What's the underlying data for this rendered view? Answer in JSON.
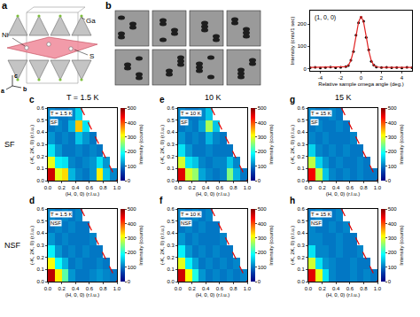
{
  "diagram_a": {
    "label": "a",
    "atoms": [
      "Ga",
      "Ni",
      "S"
    ],
    "axes": [
      "c",
      "a",
      "b"
    ]
  },
  "photos_b": {
    "label": "b",
    "count": 8
  },
  "row_labels": [
    "SF",
    "NSF"
  ],
  "column_labels": [
    "T = 1.5 K",
    "10 K",
    "15 K"
  ],
  "chart_data": [
    {
      "type": "scatter",
      "annotations": [
        "(1, 0, 0)"
      ],
      "x_label": "Relative sample omega angle (deg.)",
      "y_label": "Intensity (cnts/1 sec)",
      "xlim": [
        -5,
        5
      ],
      "ylim": [
        -10,
        260
      ],
      "xticks": [
        -4,
        -2,
        0,
        2,
        4
      ],
      "yticks": [
        0,
        100,
        200
      ],
      "series": [
        {
          "type": "scatter",
          "marker": "circle",
          "color": "#000000",
          "x": [
            -5,
            -4.5,
            -4,
            -3.5,
            -3,
            -2.5,
            -2,
            -1.5,
            -1.25,
            -1,
            -0.75,
            -0.5,
            -0.25,
            0,
            0.25,
            0.5,
            0.75,
            1,
            1.25,
            1.5,
            2,
            2.5,
            3,
            3.5,
            4,
            4.5,
            5
          ],
          "values": [
            4,
            6,
            3,
            5,
            7,
            4,
            6,
            9,
            14,
            38,
            76,
            150,
            205,
            230,
            212,
            140,
            84,
            33,
            16,
            7,
            5,
            6,
            4,
            5,
            3,
            6,
            4
          ]
        },
        {
          "type": "line",
          "line_style": "solid",
          "color": "#e02020",
          "x": [
            -5,
            -2,
            -1.5,
            -1.25,
            -1,
            -0.75,
            -0.5,
            -0.25,
            0,
            0.25,
            0.5,
            0.75,
            1,
            1.25,
            1.5,
            2,
            5
          ],
          "values": [
            5,
            5,
            8,
            15,
            36,
            80,
            145,
            208,
            235,
            208,
            145,
            80,
            36,
            15,
            8,
            5,
            5
          ]
        }
      ]
    },
    {
      "type": "heatmap",
      "label": "c",
      "annotations": [
        "T = 1.5 K",
        "SF"
      ],
      "x_label": "(H, 0, 0) (r.l.u.)",
      "y_label": "(-K, 2K, 0) (r.l.u.)",
      "xlim": [
        0,
        1
      ],
      "ylim": [
        0,
        0.6
      ],
      "xticks": [
        {
          "value": 0,
          "label": "0.0"
        },
        0.2,
        0.4,
        0.6,
        0.8,
        {
          "value": 1,
          "label": "1.0"
        }
      ],
      "yticks": [
        {
          "value": 0,
          "label": "0.0"
        },
        0.1,
        0.2,
        0.3,
        0.4,
        0.5,
        0.6
      ],
      "x": [
        0.05,
        0.15,
        0.25,
        0.35,
        0.45,
        0.55,
        0.65,
        0.75,
        0.85,
        0.95
      ],
      "y": [
        0.05,
        0.15,
        0.25,
        0.35,
        0.45,
        0.55
      ],
      "cells": [
        [
          460,
          300,
          330,
          140,
          110,
          100,
          120,
          320,
          150,
          110
        ],
        [
          300,
          180,
          170,
          110,
          100,
          110,
          120,
          170,
          120,
          null
        ],
        [
          170,
          120,
          100,
          100,
          110,
          100,
          110,
          100,
          null,
          null
        ],
        [
          120,
          100,
          110,
          100,
          150,
          120,
          100,
          null,
          null,
          null
        ],
        [
          100,
          110,
          100,
          140,
          340,
          170,
          null,
          null,
          null,
          null
        ],
        [
          110,
          100,
          100,
          110,
          160,
          null,
          null,
          null,
          null,
          null
        ]
      ],
      "colorbar": {
        "range": [
          0,
          500
        ],
        "ticks": [
          0,
          100,
          200,
          300,
          400,
          500
        ],
        "title": "Intensity (counts)"
      },
      "boundary": {
        "x": [
          0.48,
          1
        ],
        "y": [
          0.6,
          0
        ],
        "color": "#e00000",
        "line_style": "dash"
      }
    },
    {
      "type": "heatmap",
      "label": "d",
      "annotations": [
        "T = 1.5 K",
        "NSF"
      ],
      "x_label": "(H, 0, 0) (r.l.u.)",
      "y_label": "(-K, 2K, 0) (r.l.u.)",
      "xlim": [
        0,
        1
      ],
      "ylim": [
        0,
        0.6
      ],
      "xticks": [
        {
          "value": 0,
          "label": "0.0"
        },
        0.2,
        0.4,
        0.6,
        0.8,
        {
          "value": 1,
          "label": "1.0"
        }
      ],
      "yticks": [
        {
          "value": 0,
          "label": "0.0"
        },
        0.1,
        0.2,
        0.3,
        0.4,
        0.5,
        0.6
      ],
      "x": [
        0.05,
        0.15,
        0.25,
        0.35,
        0.45,
        0.55,
        0.65,
        0.75,
        0.85,
        0.95
      ],
      "y": [
        0.05,
        0.15,
        0.25,
        0.35,
        0.45,
        0.55
      ],
      "cells": [
        [
          470,
          320,
          230,
          120,
          100,
          100,
          110,
          120,
          110,
          100
        ],
        [
          310,
          190,
          140,
          100,
          110,
          100,
          100,
          110,
          100,
          null
        ],
        [
          180,
          120,
          100,
          110,
          100,
          110,
          100,
          100,
          null,
          null
        ],
        [
          120,
          100,
          110,
          100,
          100,
          100,
          110,
          null,
          null,
          null
        ],
        [
          100,
          110,
          100,
          110,
          100,
          100,
          null,
          null,
          null,
          null
        ],
        [
          110,
          100,
          110,
          100,
          110,
          null,
          null,
          null,
          null,
          null
        ]
      ],
      "colorbar": {
        "range": [
          0,
          500
        ],
        "ticks": [
          0,
          100,
          200,
          300,
          400,
          500
        ],
        "title": "Intensity (counts)"
      },
      "boundary": {
        "x": [
          0.48,
          1
        ],
        "y": [
          0.6,
          0
        ],
        "color": "#e00000",
        "line_style": "dash"
      }
    },
    {
      "type": "heatmap",
      "label": "e",
      "annotations": [
        "T = 10 K",
        "SF"
      ],
      "x_label": "(H, 0, 0) (r.l.u.)",
      "y_label": "(-K, 2K, 0) (r.l.u.)",
      "xlim": [
        0,
        1
      ],
      "ylim": [
        0,
        0.6
      ],
      "xticks": [
        {
          "value": 0,
          "label": "0.0"
        },
        0.2,
        0.4,
        0.6,
        0.8,
        {
          "value": 1,
          "label": "1.0"
        }
      ],
      "yticks": [
        {
          "value": 0,
          "label": "0.0"
        },
        0.1,
        0.2,
        0.3,
        0.4,
        0.5,
        0.6
      ],
      "x": [
        0.05,
        0.15,
        0.25,
        0.35,
        0.45,
        0.55,
        0.65,
        0.75,
        0.85,
        0.95
      ],
      "y": [
        0.05,
        0.15,
        0.25,
        0.35,
        0.45,
        0.55
      ],
      "cells": [
        [
          450,
          290,
          260,
          130,
          110,
          100,
          110,
          250,
          140,
          100
        ],
        [
          290,
          170,
          150,
          110,
          100,
          110,
          110,
          150,
          110,
          null
        ],
        [
          170,
          120,
          100,
          100,
          110,
          100,
          100,
          100,
          null,
          null
        ],
        [
          120,
          100,
          110,
          100,
          140,
          110,
          100,
          null,
          null,
          null
        ],
        [
          100,
          110,
          100,
          130,
          270,
          150,
          null,
          null,
          null,
          null
        ],
        [
          110,
          100,
          100,
          110,
          150,
          null,
          null,
          null,
          null,
          null
        ]
      ],
      "colorbar": {
        "range": [
          0,
          500
        ],
        "ticks": [
          0,
          100,
          200,
          300,
          400,
          500
        ],
        "title": "Intensity (counts)"
      },
      "boundary": {
        "x": [
          0.48,
          1
        ],
        "y": [
          0.6,
          0
        ],
        "color": "#e00000",
        "line_style": "dash"
      }
    },
    {
      "type": "heatmap",
      "label": "f",
      "annotations": [
        "T = 10 K",
        "NSF"
      ],
      "x_label": "(H, 0, 0) (r.l.u.)",
      "y_label": "(-K, 2K, 0) (r.l.u.)",
      "xlim": [
        0,
        1
      ],
      "ylim": [
        0,
        0.6
      ],
      "xticks": [
        {
          "value": 0,
          "label": "0.0"
        },
        0.2,
        0.4,
        0.6,
        0.8,
        {
          "value": 1,
          "label": "1.0"
        }
      ],
      "yticks": [
        {
          "value": 0,
          "label": "0.0"
        },
        0.1,
        0.2,
        0.3,
        0.4,
        0.5,
        0.6
      ],
      "x": [
        0.05,
        0.15,
        0.25,
        0.35,
        0.45,
        0.55,
        0.65,
        0.75,
        0.85,
        0.95
      ],
      "y": [
        0.05,
        0.15,
        0.25,
        0.35,
        0.45,
        0.55
      ],
      "cells": [
        [
          460,
          310,
          200,
          120,
          100,
          110,
          100,
          110,
          100,
          110
        ],
        [
          300,
          180,
          130,
          100,
          110,
          100,
          110,
          100,
          110,
          null
        ],
        [
          180,
          120,
          100,
          110,
          100,
          110,
          100,
          100,
          null,
          null
        ],
        [
          120,
          100,
          110,
          100,
          100,
          100,
          110,
          null,
          null,
          null
        ],
        [
          100,
          110,
          100,
          110,
          100,
          100,
          null,
          null,
          null,
          null
        ],
        [
          110,
          100,
          110,
          100,
          110,
          null,
          null,
          null,
          null,
          null
        ]
      ],
      "colorbar": {
        "range": [
          0,
          500
        ],
        "ticks": [
          0,
          100,
          200,
          300,
          400,
          500
        ],
        "title": "Intensity (counts)"
      },
      "boundary": {
        "x": [
          0.48,
          1
        ],
        "y": [
          0.6,
          0
        ],
        "color": "#e00000",
        "line_style": "dash"
      }
    },
    {
      "type": "heatmap",
      "label": "g",
      "annotations": [
        "T = 15 K",
        "SF"
      ],
      "x_label": "(H, 0, 0) (r.l.u.)",
      "y_label": "(-K, 2K, 0) (r.l.u.)",
      "xlim": [
        0,
        1
      ],
      "ylim": [
        0,
        0.6
      ],
      "xticks": [
        {
          "value": 0,
          "label": "0.0"
        },
        0.2,
        0.4,
        0.6,
        0.8,
        {
          "value": 1,
          "label": "1.0"
        }
      ],
      "yticks": [
        {
          "value": 0,
          "label": "0.0"
        },
        0.1,
        0.2,
        0.3,
        0.4,
        0.5,
        0.6
      ],
      "x": [
        0.05,
        0.15,
        0.25,
        0.35,
        0.45,
        0.55,
        0.65,
        0.75,
        0.85,
        0.95
      ],
      "y": [
        0.05,
        0.15,
        0.25,
        0.35,
        0.45,
        0.55
      ],
      "cells": [
        [
          440,
          280,
          150,
          110,
          100,
          110,
          100,
          110,
          100,
          100
        ],
        [
          280,
          160,
          120,
          100,
          110,
          100,
          100,
          110,
          100,
          null
        ],
        [
          160,
          110,
          100,
          110,
          100,
          110,
          100,
          100,
          null,
          null
        ],
        [
          110,
          100,
          110,
          100,
          100,
          100,
          110,
          null,
          null,
          null
        ],
        [
          100,
          110,
          100,
          100,
          110,
          100,
          null,
          null,
          null,
          null
        ],
        [
          110,
          100,
          100,
          110,
          100,
          null,
          null,
          null,
          null,
          null
        ]
      ],
      "colorbar": {
        "range": [
          0,
          500
        ],
        "ticks": [
          0,
          100,
          200,
          300,
          400,
          500
        ],
        "title": "Intensity (counts)"
      },
      "boundary": {
        "x": [
          0.48,
          1
        ],
        "y": [
          0.6,
          0
        ],
        "color": "#e00000",
        "line_style": "dash"
      }
    },
    {
      "type": "heatmap",
      "label": "h",
      "annotations": [
        "T = 15 K",
        "NSF"
      ],
      "x_label": "(H, 0, 0) (r.l.u.)",
      "y_label": "(-K, 2K, 0) (r.l.u.)",
      "xlim": [
        0,
        1
      ],
      "ylim": [
        0,
        0.6
      ],
      "xticks": [
        {
          "value": 0,
          "label": "0.0"
        },
        0.2,
        0.4,
        0.6,
        0.8,
        {
          "value": 1,
          "label": "1.0"
        }
      ],
      "yticks": [
        {
          "value": 0,
          "label": "0.0"
        },
        0.1,
        0.2,
        0.3,
        0.4,
        0.5,
        0.6
      ],
      "x": [
        0.05,
        0.15,
        0.25,
        0.35,
        0.45,
        0.55,
        0.65,
        0.75,
        0.85,
        0.95
      ],
      "y": [
        0.05,
        0.15,
        0.25,
        0.35,
        0.45,
        0.55
      ],
      "cells": [
        [
          450,
          300,
          170,
          110,
          100,
          100,
          110,
          100,
          110,
          100
        ],
        [
          290,
          170,
          120,
          110,
          100,
          100,
          110,
          100,
          100,
          null
        ],
        [
          170,
          110,
          110,
          100,
          110,
          100,
          100,
          110,
          null,
          null
        ],
        [
          110,
          110,
          100,
          100,
          110,
          100,
          100,
          null,
          null,
          null
        ],
        [
          110,
          100,
          100,
          110,
          100,
          110,
          null,
          null,
          null,
          null
        ],
        [
          100,
          110,
          100,
          100,
          110,
          null,
          null,
          null,
          null,
          null
        ]
      ],
      "colorbar": {
        "range": [
          0,
          500
        ],
        "ticks": [
          0,
          100,
          200,
          300,
          400,
          500
        ],
        "title": "Intensity (counts)"
      },
      "boundary": {
        "x": [
          0.48,
          1
        ],
        "y": [
          0.6,
          0
        ],
        "color": "#e00000",
        "line_style": "dash"
      }
    }
  ]
}
